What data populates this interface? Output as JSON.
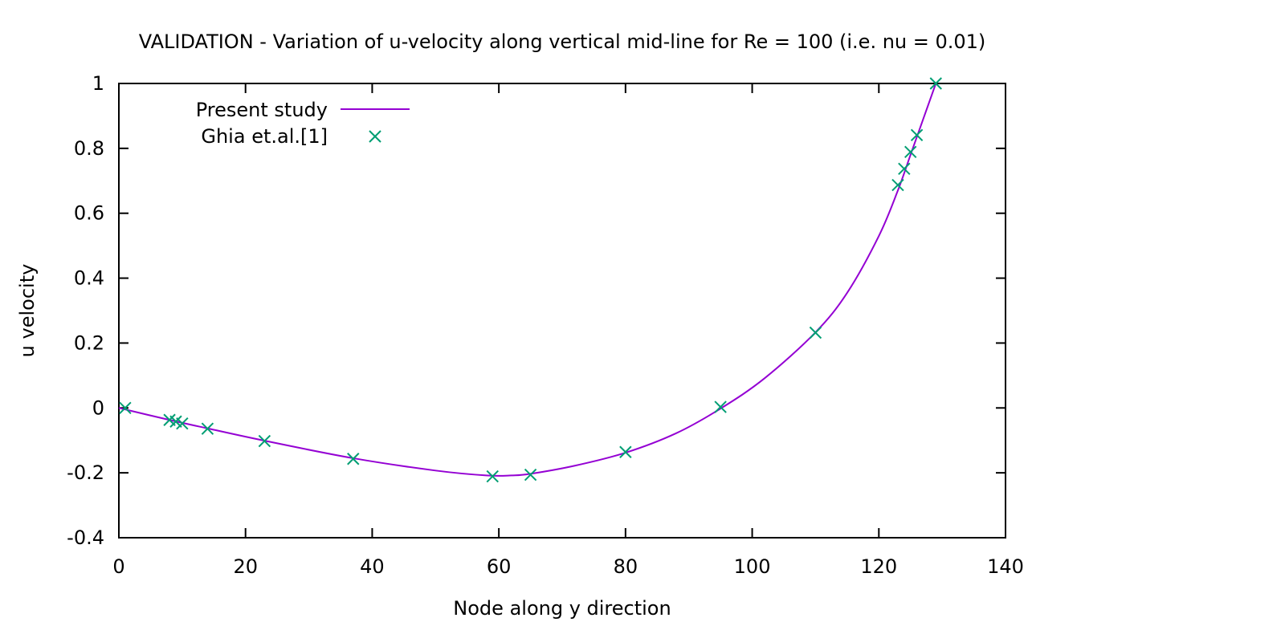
{
  "chart_data": {
    "type": "line",
    "title": "VALIDATION - Variation of u-velocity along vertical mid-line for Re = 100 (i.e. nu = 0.01)",
    "xlabel": "Node along y direction",
    "ylabel": "u velocity",
    "xlim": [
      0,
      140
    ],
    "ylim": [
      -0.4,
      1
    ],
    "xticks": [
      0,
      20,
      40,
      60,
      80,
      100,
      120,
      140
    ],
    "yticks": [
      -0.4,
      -0.2,
      0,
      0.2,
      0.4,
      0.6,
      0.8,
      1
    ],
    "xtick_labels": [
      "0",
      "20",
      "40",
      "60",
      "80",
      "100",
      "120",
      "140"
    ],
    "ytick_labels": [
      "-0.4",
      "-0.2",
      "0",
      "0.2",
      "0.4",
      "0.6",
      "0.8",
      "1"
    ],
    "grid": false,
    "legend_position": "top-left",
    "series": [
      {
        "name": "Present study",
        "style": "line",
        "color": "#9400d3",
        "x": [
          0,
          8,
          14,
          23,
          37,
          50,
          58,
          62,
          65,
          72,
          80,
          88,
          95,
          102,
          110,
          115,
          120,
          123,
          125,
          127,
          129
        ],
        "y": [
          0,
          -0.037,
          -0.063,
          -0.101,
          -0.155,
          -0.193,
          -0.208,
          -0.208,
          -0.203,
          -0.178,
          -0.138,
          -0.078,
          -0.002,
          0.092,
          0.233,
          0.355,
          0.53,
          0.67,
          0.78,
          0.89,
          1.0
        ]
      },
      {
        "name": "Ghia et.al.[1]",
        "style": "marker",
        "marker": "x",
        "color": "#009e73",
        "x": [
          1,
          8,
          9,
          10,
          14,
          23,
          37,
          59,
          65,
          80,
          95,
          110,
          123,
          124,
          125,
          126,
          129
        ],
        "y": [
          0,
          -0.037,
          -0.042,
          -0.048,
          -0.064,
          -0.102,
          -0.157,
          -0.211,
          -0.206,
          -0.136,
          0.003,
          0.232,
          0.687,
          0.737,
          0.789,
          0.841,
          1.0
        ]
      }
    ]
  }
}
